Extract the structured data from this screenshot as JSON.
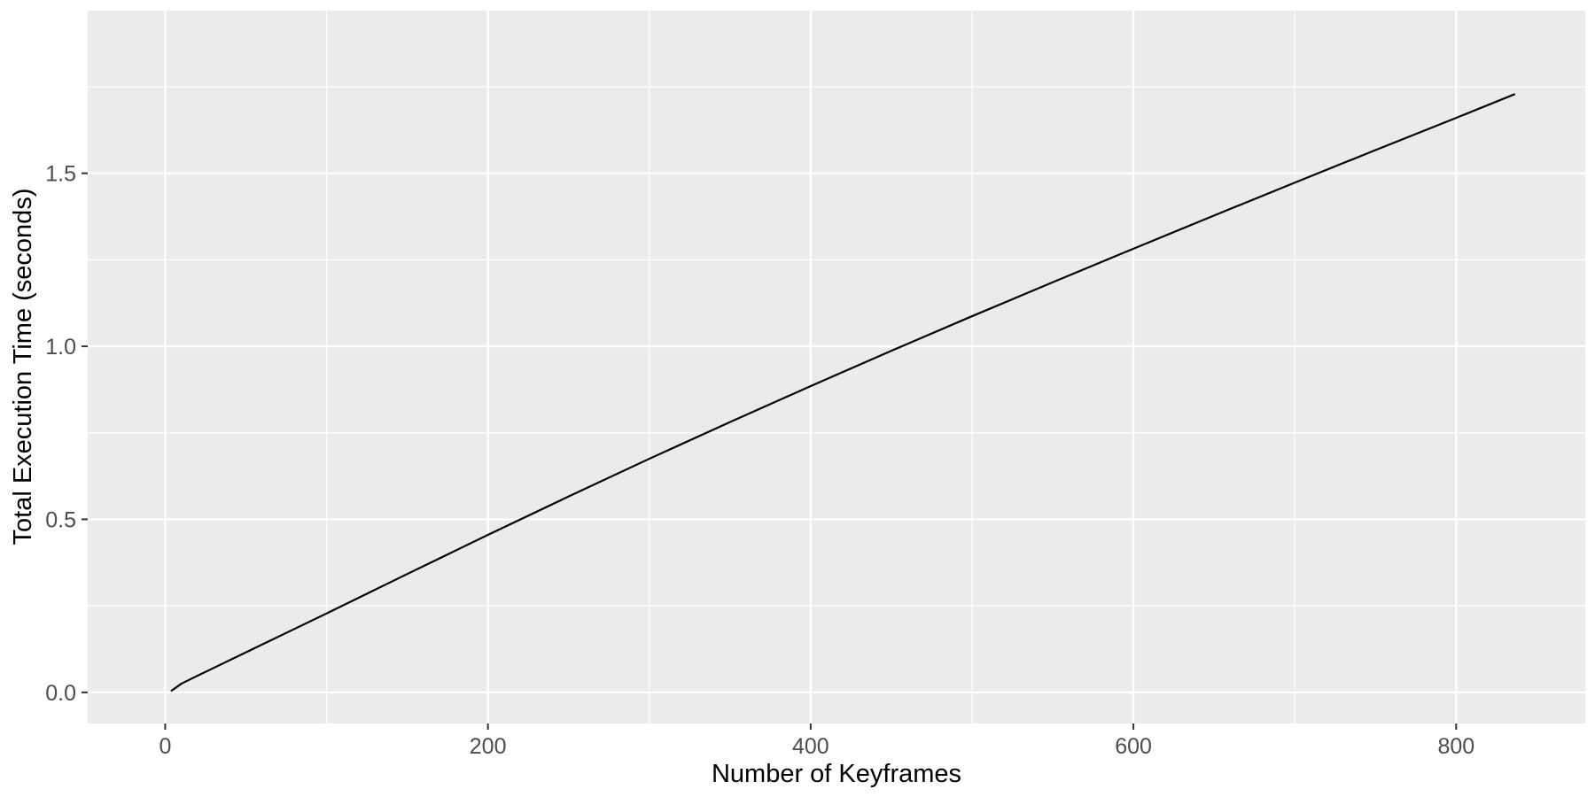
{
  "chart_data": {
    "type": "line",
    "title": "",
    "xlabel": "Number of Keyframes",
    "ylabel": "Total Execution Time (seconds)",
    "xlim": [
      -48,
      880
    ],
    "ylim": [
      -0.09,
      1.97
    ],
    "x_ticks": [
      0,
      200,
      400,
      600,
      800
    ],
    "x_tick_labels": [
      "0",
      "200",
      "400",
      "600",
      "800"
    ],
    "y_ticks": [
      0.0,
      0.5,
      1.0,
      1.5
    ],
    "y_tick_labels": [
      "0.0",
      "0.5",
      "1.0",
      "1.5"
    ],
    "grid": true,
    "series": [
      {
        "color": "#000000",
        "x": [
          4,
          10,
          20,
          40,
          60,
          80,
          100,
          150,
          200,
          250,
          300,
          350,
          400,
          450,
          500,
          550,
          600,
          650,
          700,
          750,
          800,
          836
        ],
        "y": [
          0.005,
          0.025,
          0.048,
          0.093,
          0.138,
          0.183,
          0.228,
          0.342,
          0.455,
          0.566,
          0.675,
          0.781,
          0.885,
          0.987,
          1.087,
          1.185,
          1.282,
          1.378,
          1.473,
          1.567,
          1.66,
          1.728
        ]
      }
    ]
  }
}
